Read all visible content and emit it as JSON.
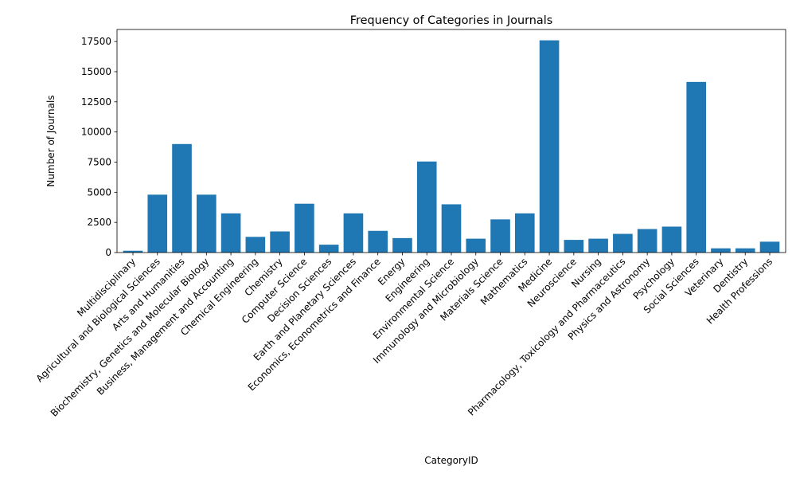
{
  "chart_data": {
    "type": "bar",
    "title": "Frequency of Categories in Journals",
    "xlabel": "CategoryID",
    "ylabel": "Number of Journals",
    "ylim": [
      0,
      18500
    ],
    "yticks": [
      0,
      2500,
      5000,
      7500,
      10000,
      12500,
      15000,
      17500
    ],
    "yticklabels": [
      "0",
      "2500",
      "5000",
      "7500",
      "10000",
      "12500",
      "15000",
      "17500"
    ],
    "bar_color": "#1f77b4",
    "grid": false,
    "legend": "none",
    "categories": [
      "Multidisciplinary",
      "Agricultural and Biological Sciences",
      "Arts and Humanities",
      "Biochemistry, Genetics and Molecular Biology",
      "Business, Management and Accounting",
      "Chemical Engineering",
      "Chemistry",
      "Computer Science",
      "Decision Sciences",
      "Earth and Planetary Sciences",
      "Economics, Econometrics and Finance",
      "Energy",
      "Engineering",
      "Environmental Science",
      "Immunology and Microbiology",
      "Materials Science",
      "Mathematics",
      "Medicine",
      "Neuroscience",
      "Nursing",
      "Pharmacology, Toxicology and Pharmaceutics",
      "Physics and Astronomy",
      "Psychology",
      "Social Sciences",
      "Veterinary",
      "Dentistry",
      "Health Professions"
    ],
    "values": [
      150,
      4800,
      9000,
      4800,
      3250,
      1300,
      1750,
      4050,
      650,
      3250,
      1800,
      1200,
      7550,
      4000,
      1150,
      2750,
      3250,
      17600,
      1050,
      1150,
      1550,
      1950,
      2150,
      14150,
      350,
      350,
      900
    ]
  }
}
